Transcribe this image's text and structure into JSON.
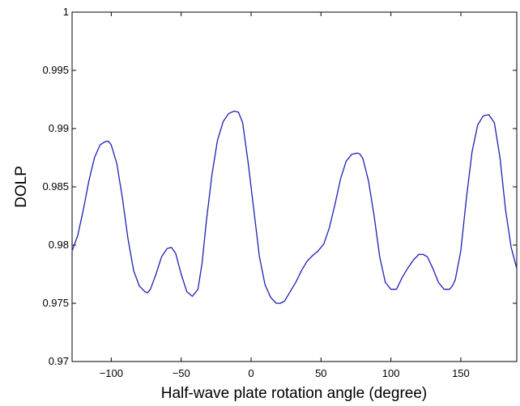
{
  "chart_data": {
    "type": "line",
    "title": "",
    "xlabel": "Half-wave plate rotation angle (degree)",
    "ylabel": "DOLP",
    "xlim": [
      -128,
      190
    ],
    "ylim": [
      0.97,
      1.0
    ],
    "grid": false,
    "legend": "none",
    "x_ticks": [
      -100,
      -50,
      0,
      50,
      100,
      150
    ],
    "x_tick_labels": [
      "−100",
      "−50",
      "0",
      "50",
      "100",
      "150"
    ],
    "y_ticks": [
      0.97,
      0.975,
      0.98,
      0.985,
      0.99,
      0.995,
      1.0
    ],
    "y_tick_labels": [
      "0.97",
      "0.975",
      "0.98",
      "0.985",
      "0.99",
      "0.995",
      "1"
    ],
    "series": [
      {
        "color": "#1f1fb4",
        "x": [
          -128,
          -124,
          -120,
          -116,
          -112,
          -108,
          -104,
          -102,
          -100,
          -96,
          -92,
          -88,
          -84,
          -80,
          -76,
          -74,
          -72,
          -68,
          -64,
          -60,
          -57,
          -54,
          -50,
          -46,
          -42,
          -38,
          -35,
          -32,
          -28,
          -24,
          -20,
          -16,
          -12,
          -9,
          -6,
          -2,
          2,
          6,
          10,
          14,
          18,
          21,
          24,
          28,
          32,
          36,
          40,
          44,
          48,
          52,
          56,
          60,
          64,
          68,
          72,
          76,
          78,
          80,
          84,
          88,
          92,
          96,
          100,
          104,
          106,
          108,
          112,
          116,
          120,
          123,
          126,
          130,
          134,
          138,
          142,
          144,
          146,
          150,
          154,
          158,
          162,
          166,
          170,
          174,
          178,
          182,
          186,
          190
        ],
        "y": [
          0.9795,
          0.9808,
          0.983,
          0.9855,
          0.9875,
          0.9886,
          0.9889,
          0.9889,
          0.9886,
          0.987,
          0.984,
          0.9805,
          0.9778,
          0.9765,
          0.976,
          0.9759,
          0.9762,
          0.9775,
          0.979,
          0.9797,
          0.9798,
          0.9793,
          0.9775,
          0.976,
          0.9756,
          0.9762,
          0.9785,
          0.982,
          0.986,
          0.989,
          0.9906,
          0.9913,
          0.9915,
          0.9914,
          0.9905,
          0.987,
          0.983,
          0.979,
          0.9766,
          0.9755,
          0.975,
          0.975,
          0.9752,
          0.976,
          0.9768,
          0.9778,
          0.9786,
          0.9791,
          0.9795,
          0.9801,
          0.9815,
          0.9835,
          0.9857,
          0.9872,
          0.9878,
          0.9879,
          0.9878,
          0.9874,
          0.9855,
          0.9825,
          0.979,
          0.9768,
          0.9762,
          0.9762,
          0.9767,
          0.9772,
          0.978,
          0.9787,
          0.9792,
          0.9792,
          0.979,
          0.978,
          0.9768,
          0.9762,
          0.9762,
          0.9765,
          0.977,
          0.9795,
          0.984,
          0.988,
          0.9903,
          0.9911,
          0.9912,
          0.9905,
          0.9875,
          0.983,
          0.9798,
          0.978
        ]
      }
    ]
  }
}
